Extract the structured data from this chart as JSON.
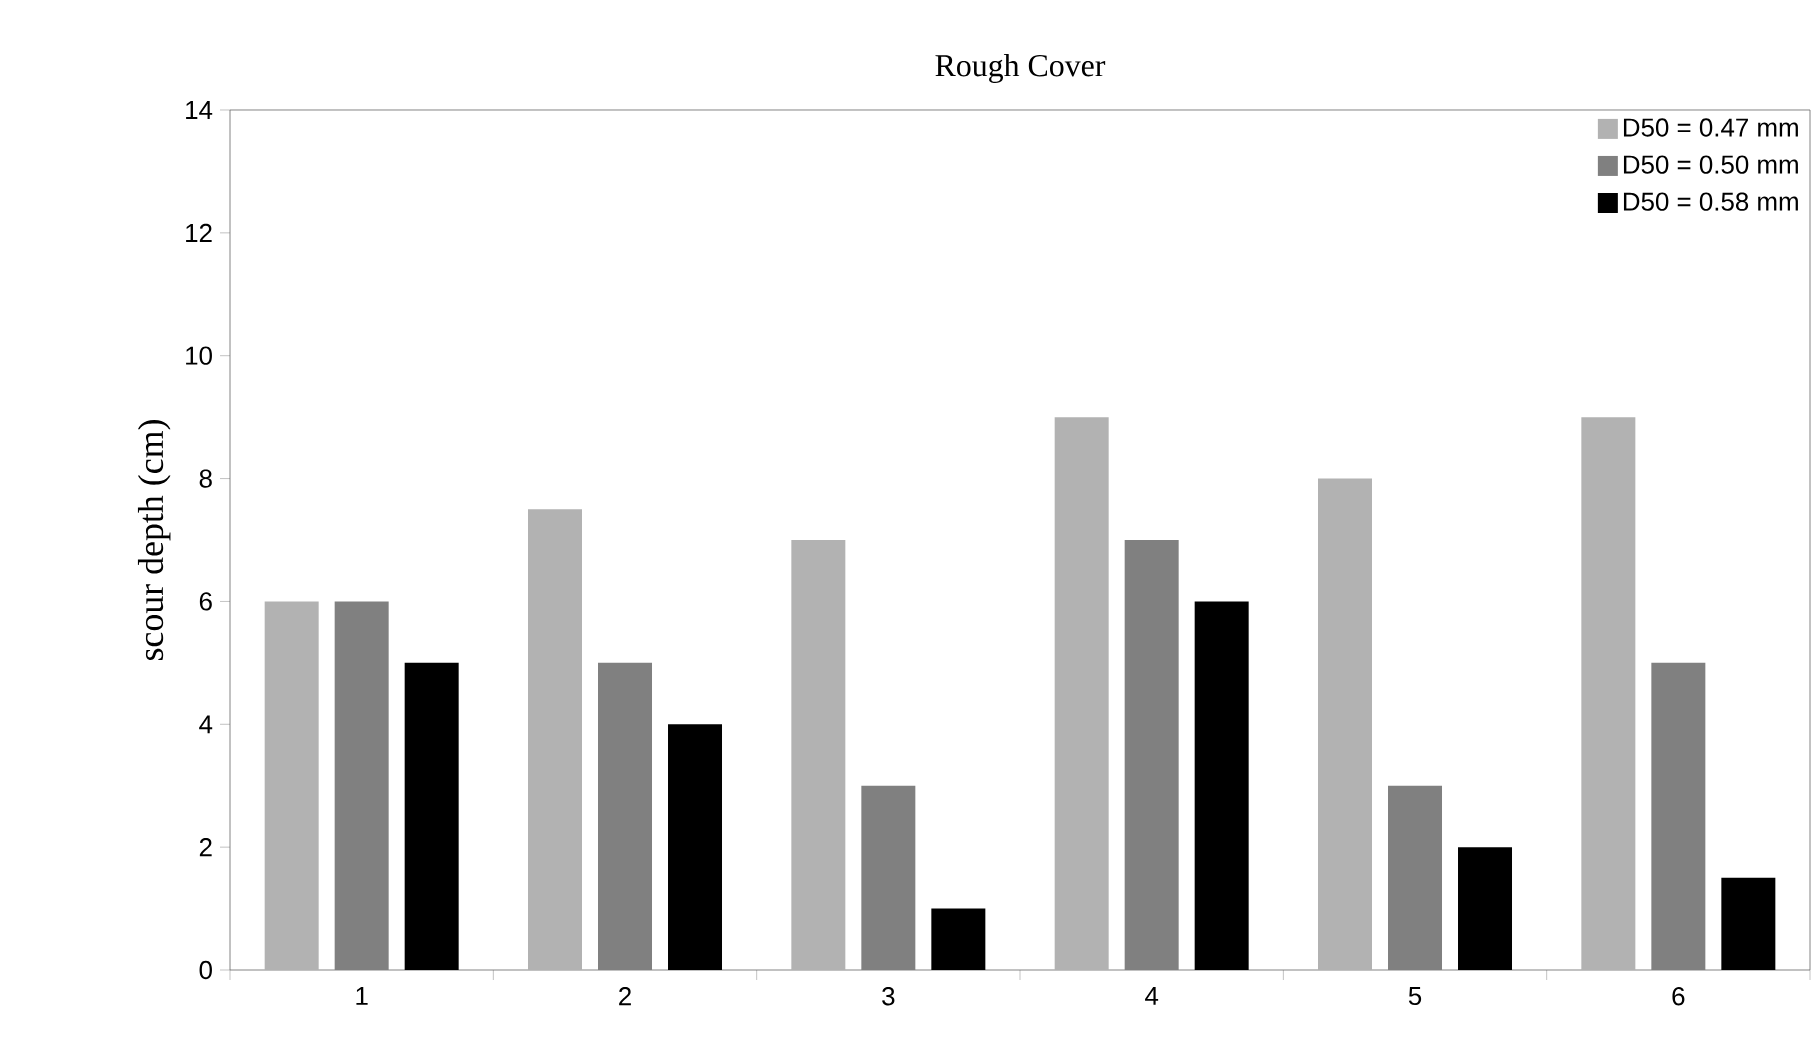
{
  "chart_data": {
    "type": "bar",
    "title": "Rough Cover",
    "ylabel": "scour depth (cm)",
    "categories": [
      "1",
      "2",
      "3",
      "4",
      "5",
      "6"
    ],
    "series": [
      {
        "name": "D50 = 0.47 mm",
        "color": "#b2b2b2",
        "values": [
          6,
          7.5,
          7,
          9,
          8,
          9
        ]
      },
      {
        "name": "D50 = 0.50 mm",
        "color": "#808080",
        "values": [
          6,
          5,
          3,
          7,
          3,
          5
        ]
      },
      {
        "name": "D50 = 0.58 mm",
        "color": "#000000",
        "values": [
          5,
          4,
          1,
          6,
          2,
          1.5
        ]
      }
    ],
    "ylim": [
      0,
      14
    ],
    "yticks": [
      0,
      2,
      4,
      6,
      8,
      10,
      12,
      14
    ],
    "grid": false,
    "legend": "top right"
  }
}
